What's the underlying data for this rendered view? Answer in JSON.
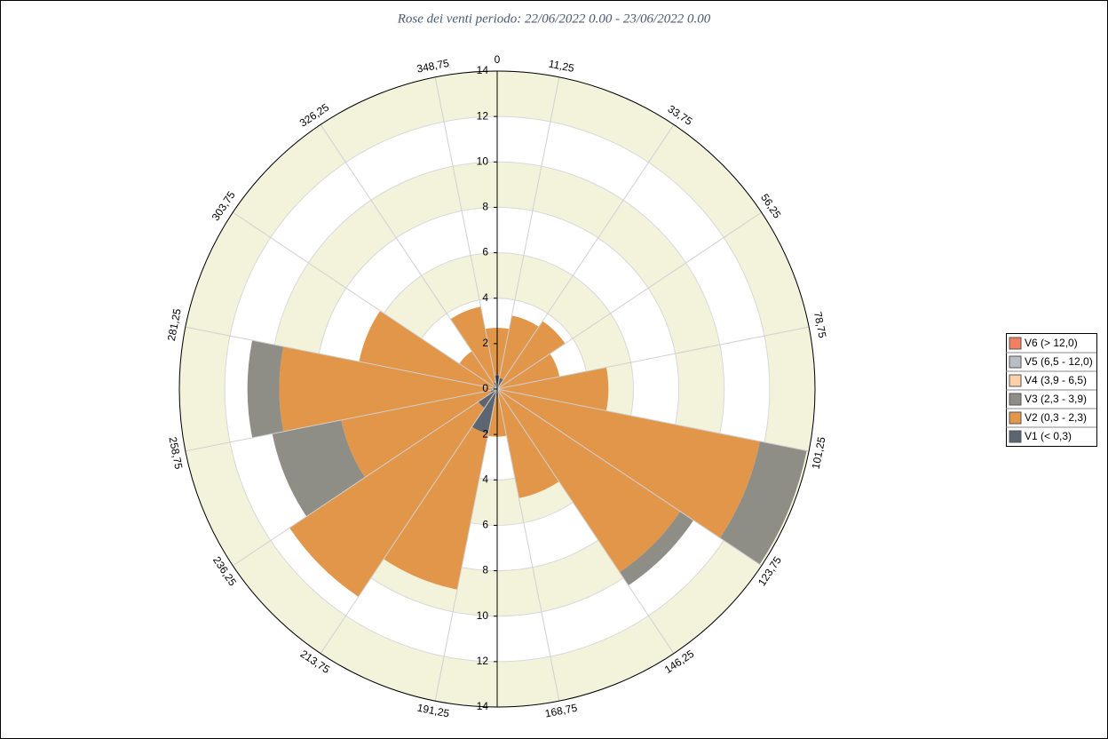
{
  "chart_data": {
    "type": "windrose",
    "title": "Rose dei venti periodo: 22/06/2022 0.00 - 23/06/2022 0.00",
    "sector_width": 22.5,
    "angle_labels": [
      0,
      {
        "value": 11.25,
        "label": "11,25"
      },
      {
        "value": 33.75,
        "label": "33,75"
      },
      {
        "value": 56.25,
        "label": "56,25"
      },
      {
        "value": 78.75,
        "label": "78,75"
      },
      {
        "value": 101.25,
        "label": "101,25"
      },
      {
        "value": 123.75,
        "label": "123,75"
      },
      {
        "value": 146.25,
        "label": "146,25"
      },
      {
        "value": 168.75,
        "label": "168,75"
      },
      {
        "value": 191.25,
        "label": "191,25"
      },
      {
        "value": 213.75,
        "label": "213,75"
      },
      {
        "value": 236.25,
        "label": "236,25"
      },
      {
        "value": 258.75,
        "label": "258,75"
      },
      {
        "value": 281.25,
        "label": "281,25"
      },
      {
        "value": 303.75,
        "label": "303,75"
      },
      {
        "value": 326.25,
        "label": "326,25"
      },
      {
        "value": 348.75,
        "label": "348,75"
      }
    ],
    "rlim": [
      0,
      14
    ],
    "rticks": [
      0,
      2,
      4,
      6,
      8,
      10,
      12,
      14
    ],
    "band_colors": [
      "#f3f3dc",
      "#ffffff"
    ],
    "series": [
      {
        "name": "V1 (< 0,3)",
        "color": "#5d6670",
        "values": [
          0.6,
          0.5,
          0.1,
          0.1,
          0,
          0,
          0,
          0.1,
          0.3,
          2.0,
          1.0,
          0.3,
          0.2,
          0.2,
          0.2,
          0.3
        ]
      },
      {
        "name": "V2 (0,3 - 2,3)",
        "color": "#e2964a",
        "values": [
          2.1,
          2.8,
          3.5,
          2.7,
          4.9,
          11.8,
          9.7,
          4.8,
          1.8,
          7.0,
          10.0,
          6.7,
          9.4,
          6.0,
          1.8,
          3.4
        ]
      },
      {
        "name": "V3 (2,3 - 3,9)",
        "color": "#8f8e86",
        "values": [
          0,
          0,
          0,
          0,
          0,
          2.1,
          0.7,
          0,
          0,
          0,
          0,
          3.1,
          1.4,
          0,
          0,
          0
        ]
      },
      {
        "name": "V4 (3,9 - 6,5)",
        "color": "#fcd0a8",
        "values": [
          0,
          0,
          0,
          0,
          0,
          0,
          0,
          0,
          0,
          0,
          0,
          0,
          0,
          0,
          0,
          0
        ]
      },
      {
        "name": "V5 (6,5 - 12,0)",
        "color": "#b8bec4",
        "values": [
          0,
          0,
          0,
          0,
          0,
          0,
          0,
          0,
          0,
          0,
          0,
          0,
          0,
          0,
          0,
          0
        ]
      },
      {
        "name": "V6 (> 12,0)",
        "color": "#f08060",
        "values": [
          0,
          0,
          0,
          0,
          0,
          0,
          0,
          0,
          0,
          0,
          0,
          0,
          0,
          0,
          0,
          0
        ]
      }
    ]
  }
}
